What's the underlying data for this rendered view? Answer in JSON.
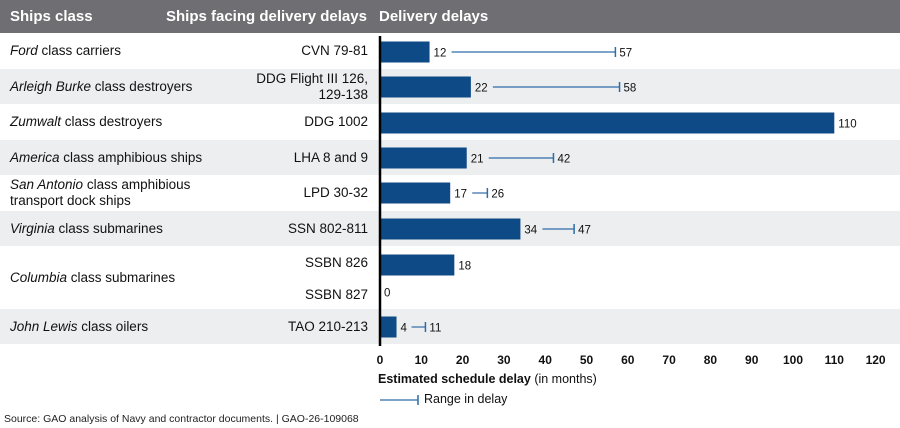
{
  "header": {
    "col1": "Ships class",
    "col2": "Ships facing delivery delays",
    "col3": "Delivery delays"
  },
  "colors": {
    "header_bg": "#6f6f73",
    "bar": "#0d4a86",
    "band": "#eceeef",
    "range_line": "#2e6ca8"
  },
  "rows": [
    {
      "class_italic": "Ford",
      "class_rest": " class carriers",
      "hull": "CVN 79-81"
    },
    {
      "class_italic": "Arleigh Burke",
      "class_rest": " class destroyers",
      "hull": "DDG Flight III 126, 129-138"
    },
    {
      "class_italic": "Zumwalt",
      "class_rest": " class destroyers",
      "hull": "DDG 1002"
    },
    {
      "class_italic": "America",
      "class_rest": " class amphibious ships",
      "hull": "LHA 8 and 9"
    },
    {
      "class_italic": "San Antonio",
      "class_rest": " class amphibious transport dock ships",
      "hull": "LPD 30-32"
    },
    {
      "class_italic": "Virginia",
      "class_rest": " class submarines",
      "hull": "SSN 802-811"
    },
    {
      "class_italic": "Columbia",
      "class_rest": " class submarines",
      "hull": "SSBN 826"
    },
    {
      "class_italic": "",
      "class_rest": "",
      "hull": "SSBN 827"
    },
    {
      "class_italic": "John Lewis",
      "class_rest": " class oilers",
      "hull": "TAO 210-213"
    }
  ],
  "chart_data": {
    "type": "bar",
    "orientation": "horizontal",
    "categories": [
      "CVN 79-81",
      "DDG Flight III 126, 129-138",
      "DDG 1002",
      "LHA 8 and 9",
      "LPD 30-32",
      "SSN 802-811",
      "SSBN 826",
      "SSBN 827",
      "TAO 210-213"
    ],
    "values": [
      12,
      22,
      110,
      21,
      17,
      34,
      18,
      0,
      4
    ],
    "range_max": [
      57,
      58,
      null,
      42,
      26,
      47,
      null,
      null,
      11
    ],
    "value_labels": [
      "12",
      "22",
      "110",
      "21",
      "17",
      "34",
      "18",
      "0",
      "4"
    ],
    "range_labels": [
      "57",
      "58",
      "",
      "42",
      "26",
      "47",
      "",
      "",
      "11"
    ],
    "xlim": [
      0,
      120
    ],
    "xticks": [
      0,
      10,
      20,
      30,
      40,
      50,
      60,
      70,
      80,
      90,
      100,
      110,
      120
    ],
    "xlabel_bold": "Estimated schedule delay",
    "xlabel_rest": " (in months)",
    "legend_label": "Range in delay"
  },
  "source": "Source: GAO analysis of Navy and contractor documents.  |  GAO-26-109068"
}
